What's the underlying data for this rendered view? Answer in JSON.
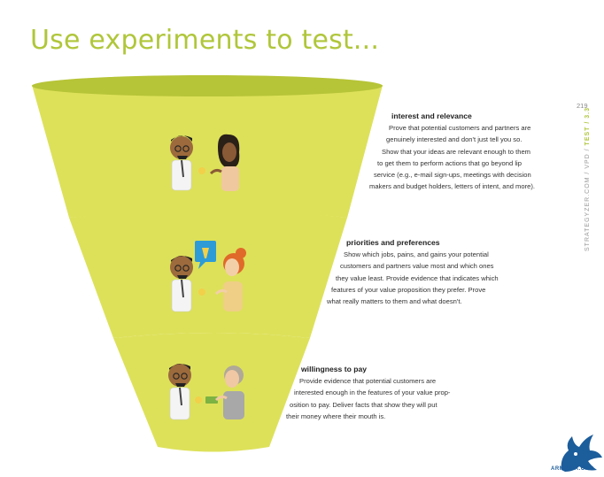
{
  "page": {
    "title": "Use experiments to test...",
    "page_number": "219",
    "side_label_prefix": "STRATEGYZER.COM / VPD / ",
    "side_label_accent": "TEST / 3.3",
    "logo_text": "ARMASIA.ORG"
  },
  "colors": {
    "title": "#b0c63a",
    "funnel_fill": "#dde15a",
    "funnel_rim": "#b6c437",
    "logo_blue": "#1c5d9c"
  },
  "sections": [
    {
      "heading": "interest and relevance",
      "lines": [
        "Prove that potential customers and partners are",
        "genuinely interested and don't just tell you so.",
        "Show that your ideas are relevant enough to them",
        "to get them to perform actions that go beyond lip",
        "service (e.g., e-mail sign-ups, meetings with decision",
        "makers and budget holders, letters of intent, and more)."
      ]
    },
    {
      "heading": "priorities and preferences",
      "lines": [
        "Show which jobs, pains, and gains your potential",
        "customers and partners value most and which ones",
        "they value least. Provide evidence that indicates which",
        "features of your value proposition they prefer. Prove",
        "what really matters to them and what doesn't."
      ]
    },
    {
      "heading": "willingness to pay",
      "lines": [
        "Provide evidence that potential customers are",
        "interested enough in the features of your value prop-",
        "osition to pay. Deliver facts that show they will put",
        "their money where their mouth is."
      ]
    }
  ],
  "icons": {
    "scene1": "two-people-talking-icon",
    "scene2": "two-people-idea-bubble-icon",
    "scene3": "two-people-money-exchange-icon",
    "logo": "phoenix-logo-icon"
  }
}
